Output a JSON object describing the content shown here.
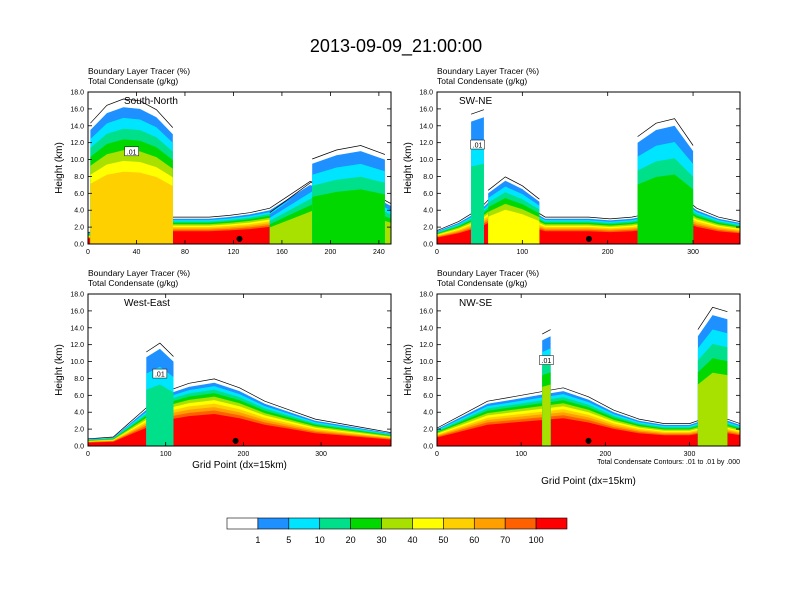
{
  "figure": {
    "title": "2013-09-09_21:00:00",
    "header_line1": "Boundary Layer Tracer    (%)",
    "header_line2": "Total Condensate    (g/kg)",
    "xlabel": "Grid Point (dx=15km)",
    "contour_note": "Total Condensate Contours: .01 to .01 by .000",
    "contour_label": ".01"
  },
  "colors": {
    "levels": [
      "#ffffff",
      "#1e90ff",
      "#00e5ff",
      "#00e08a",
      "#00d800",
      "#a8e000",
      "#ffff00",
      "#ffd000",
      "#ffa000",
      "#ff6000",
      "#ff0000"
    ],
    "labels": [
      "1",
      "5",
      "10",
      "20",
      "30",
      "40",
      "50",
      "60",
      "70",
      "100"
    ],
    "contour": "#000000"
  },
  "chart_data": [
    {
      "type": "heatmap",
      "panel_label": "South-North",
      "ylabel": "Height (km)",
      "xlim": [
        0,
        250
      ],
      "ylim": [
        0,
        18
      ],
      "xticks": [
        "0",
        "40",
        "80",
        "120",
        "160",
        "200",
        "240"
      ],
      "yticks": [
        "0.0",
        "2.0",
        "4.0",
        "6.0",
        "8.0",
        "10.0",
        "12.0",
        "14.0",
        "16.0",
        "18.0"
      ],
      "marker_x": 125,
      "regions": [
        {
          "x": [
            0,
            250
          ],
          "top": [
            1.3,
            1.5,
            2.0,
            2.5,
            3.0,
            3.0,
            3.0,
            3.2,
            3.5,
            4.0,
            5.5,
            7.0,
            5.0,
            4.0,
            3.5,
            3.0
          ],
          "value": 100
        },
        {
          "x": [
            2,
            70
          ],
          "top": [
            13.5,
            15.5,
            16.2,
            16.0,
            15.0,
            13.0
          ],
          "value": 50
        },
        {
          "x": [
            150,
            250
          ],
          "top": [
            3.5,
            5.5,
            7.5,
            8.0,
            6.0,
            4.5
          ],
          "value": 30
        },
        {
          "x": [
            185,
            245
          ],
          "top": [
            9.5,
            10.5,
            11.0,
            10.0
          ],
          "value": 20
        }
      ]
    },
    {
      "type": "heatmap",
      "panel_label": "SW-NE",
      "ylabel": "Height (km)",
      "xlim": [
        0,
        355
      ],
      "ylim": [
        0,
        18
      ],
      "xticks": [
        "0",
        "100",
        "200",
        "300"
      ],
      "yticks": [
        "0.0",
        "2.0",
        "4.0",
        "6.0",
        "8.0",
        "10.0",
        "12.0",
        "14.0",
        "16.0",
        "18.0"
      ],
      "marker_x": 178,
      "regions": [
        {
          "x": [
            0,
            355
          ],
          "top": [
            1.5,
            2.5,
            4.0,
            6.5,
            4.5,
            3.0,
            3.0,
            3.0,
            2.8,
            3.0,
            3.5,
            6.0,
            4.0,
            3.0,
            2.5
          ],
          "value": 100
        },
        {
          "x": [
            40,
            55
          ],
          "top": [
            14.5,
            15.0
          ],
          "value": 10
        },
        {
          "x": [
            60,
            120
          ],
          "top": [
            6.0,
            7.5,
            6.5,
            5.0
          ],
          "value": 40
        },
        {
          "x": [
            235,
            300
          ],
          "top": [
            12.0,
            13.5,
            14.0,
            11.0
          ],
          "value": 20
        }
      ]
    },
    {
      "type": "heatmap",
      "panel_label": "West-East",
      "ylabel": "Height (km)",
      "xlim": [
        0,
        390
      ],
      "ylim": [
        0,
        18
      ],
      "xticks": [
        "0",
        "100",
        "200",
        "300"
      ],
      "yticks": [
        "0.0",
        "2.0",
        "4.0",
        "6.0",
        "8.0",
        "10.0",
        "12.0",
        "14.0",
        "16.0",
        "18.0"
      ],
      "marker_x": 190,
      "regions": [
        {
          "x": [
            0,
            390
          ],
          "top": [
            0.8,
            1.0,
            3.5,
            6.0,
            7.0,
            7.5,
            6.5,
            5.0,
            4.0,
            3.0,
            2.5,
            2.0,
            1.5
          ],
          "value": 100
        },
        {
          "x": [
            75,
            110
          ],
          "top": [
            10.5,
            11.5,
            10.0
          ],
          "value": 10
        }
      ]
    },
    {
      "type": "heatmap",
      "panel_label": "NW-SE",
      "ylabel": "Height (km)",
      "xlim": [
        0,
        360
      ],
      "ylim": [
        0,
        18
      ],
      "xticks": [
        "0",
        "100",
        "200",
        "300"
      ],
      "yticks": [
        "0.0",
        "2.0",
        "4.0",
        "6.0",
        "8.0",
        "10.0",
        "12.0",
        "14.0",
        "16.0",
        "18.0"
      ],
      "marker_x": 180,
      "regions": [
        {
          "x": [
            0,
            360
          ],
          "top": [
            2.0,
            3.5,
            5.0,
            5.5,
            6.0,
            6.5,
            5.5,
            4.0,
            3.0,
            2.5,
            2.5,
            3.5,
            2.5
          ],
          "value": 100
        },
        {
          "x": [
            125,
            135
          ],
          "top": [
            12.5,
            13.0
          ],
          "value": 30
        },
        {
          "x": [
            310,
            345
          ],
          "top": [
            13.0,
            15.5,
            15.0
          ],
          "value": 30
        }
      ]
    }
  ]
}
